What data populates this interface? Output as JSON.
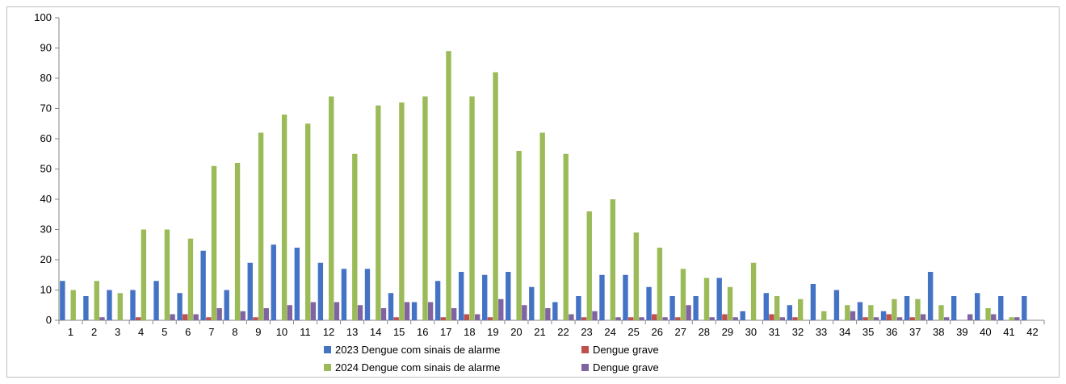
{
  "chart_data": {
    "type": "bar",
    "title": "",
    "xlabel": "",
    "ylabel": "",
    "ylim": [
      0,
      100
    ],
    "y_ticks": [
      0,
      10,
      20,
      30,
      40,
      50,
      60,
      70,
      80,
      90,
      100
    ],
    "grid": false,
    "legend_position": "bottom",
    "categories": [
      "1",
      "2",
      "3",
      "4",
      "5",
      "6",
      "7",
      "8",
      "9",
      "10",
      "11",
      "12",
      "13",
      "14",
      "15",
      "16",
      "17",
      "18",
      "19",
      "20",
      "21",
      "22",
      "23",
      "24",
      "25",
      "26",
      "27",
      "28",
      "29",
      "30",
      "31",
      "32",
      "33",
      "34",
      "35",
      "36",
      "37",
      "38",
      "39",
      "40",
      "41",
      "42"
    ],
    "series": [
      {
        "name": "2023 Dengue com sinais de alarme",
        "color": "#4472c4",
        "values": [
          13,
          8,
          10,
          10,
          13,
          9,
          23,
          10,
          19,
          25,
          24,
          19,
          17,
          17,
          9,
          6,
          13,
          16,
          15,
          16,
          11,
          6,
          8,
          15,
          15,
          11,
          8,
          8,
          14,
          3,
          9,
          5,
          12,
          10,
          6,
          3,
          8,
          16,
          8,
          9,
          8,
          8
        ]
      },
      {
        "name": "Dengue grave",
        "color": "#c0504d",
        "values": [
          0,
          0,
          0,
          1,
          0,
          2,
          1,
          0,
          1,
          0,
          0,
          0,
          0,
          0,
          1,
          0,
          1,
          2,
          1,
          0,
          0,
          0,
          1,
          0,
          1,
          2,
          1,
          0,
          2,
          0,
          2,
          1,
          0,
          0,
          1,
          2,
          1,
          0,
          0,
          0,
          0,
          0
        ]
      },
      {
        "name": "2024 Dengue com sinais de alarme",
        "color": "#9bbb59",
        "values": [
          10,
          13,
          9,
          30,
          30,
          27,
          51,
          52,
          62,
          68,
          65,
          74,
          55,
          71,
          72,
          74,
          89,
          74,
          82,
          56,
          62,
          55,
          36,
          40,
          29,
          24,
          17,
          14,
          11,
          19,
          8,
          7,
          3,
          5,
          5,
          7,
          7,
          5,
          0,
          4,
          1,
          0
        ]
      },
      {
        "name": "Dengue grave",
        "color": "#8064a2",
        "values": [
          0,
          1,
          0,
          0,
          2,
          2,
          4,
          3,
          4,
          5,
          6,
          6,
          5,
          4,
          6,
          6,
          4,
          2,
          7,
          5,
          4,
          2,
          3,
          1,
          1,
          1,
          5,
          1,
          1,
          0,
          1,
          0,
          0,
          3,
          1,
          1,
          2,
          1,
          2,
          2,
          1,
          0
        ]
      }
    ]
  }
}
